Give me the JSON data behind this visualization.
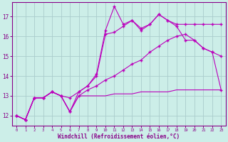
{
  "background_color": "#cceee8",
  "grid_color": "#aacccc",
  "line_color": "#bb00bb",
  "xlabel": "Windchill (Refroidissement éolien,°C)",
  "xlabel_color": "#880088",
  "tick_color": "#880088",
  "xlim": [
    -0.5,
    23.5
  ],
  "ylim": [
    11.5,
    17.7
  ],
  "yticks": [
    12,
    13,
    14,
    15,
    16,
    17
  ],
  "xticks": [
    0,
    1,
    2,
    3,
    4,
    5,
    6,
    7,
    8,
    9,
    10,
    11,
    12,
    13,
    14,
    15,
    16,
    17,
    18,
    19,
    20,
    21,
    22,
    23
  ],
  "line_jagged_x": [
    0,
    1,
    2,
    3,
    4,
    5,
    6,
    7,
    8,
    9,
    10,
    11,
    12,
    13,
    14,
    15,
    16,
    17,
    18,
    19,
    20,
    21,
    22,
    23
  ],
  "line_jagged_y": [
    12.0,
    11.8,
    12.9,
    12.9,
    13.2,
    13.0,
    12.9,
    13.2,
    13.5,
    14.1,
    16.3,
    17.5,
    16.6,
    16.8,
    16.4,
    16.6,
    17.1,
    16.8,
    16.6,
    16.6,
    16.6,
    16.6,
    16.6,
    16.6
  ],
  "line_upper_x": [
    0,
    1,
    2,
    3,
    4,
    5,
    6,
    7,
    8,
    9,
    10,
    11,
    12,
    13,
    14,
    15,
    16,
    17,
    18,
    19,
    20,
    21,
    22,
    23
  ],
  "line_upper_y": [
    12.0,
    11.8,
    12.9,
    12.9,
    13.2,
    13.0,
    12.2,
    13.2,
    13.5,
    14.0,
    16.1,
    16.2,
    16.5,
    16.8,
    16.3,
    16.6,
    17.1,
    16.8,
    16.5,
    15.8,
    15.8,
    15.4,
    15.2,
    15.0
  ],
  "line_mid_x": [
    0,
    1,
    2,
    3,
    4,
    5,
    6,
    7,
    8,
    9,
    10,
    11,
    12,
    13,
    14,
    15,
    16,
    17,
    18,
    19,
    20,
    21,
    22,
    23
  ],
  "line_mid_y": [
    12.0,
    11.8,
    12.9,
    12.9,
    13.2,
    13.0,
    12.2,
    13.0,
    13.3,
    13.5,
    13.8,
    14.0,
    14.3,
    14.6,
    14.8,
    15.2,
    15.5,
    15.8,
    16.0,
    16.1,
    15.8,
    15.4,
    15.2,
    13.3
  ],
  "line_flat_x": [
    0,
    1,
    2,
    3,
    4,
    5,
    6,
    7,
    8,
    9,
    10,
    11,
    12,
    13,
    14,
    15,
    16,
    17,
    18,
    19,
    20,
    21,
    22,
    23
  ],
  "line_flat_y": [
    12.0,
    11.8,
    12.9,
    12.9,
    13.2,
    13.0,
    12.2,
    13.0,
    13.0,
    13.0,
    13.0,
    13.1,
    13.1,
    13.1,
    13.2,
    13.2,
    13.2,
    13.2,
    13.3,
    13.3,
    13.3,
    13.3,
    13.3,
    13.3
  ]
}
